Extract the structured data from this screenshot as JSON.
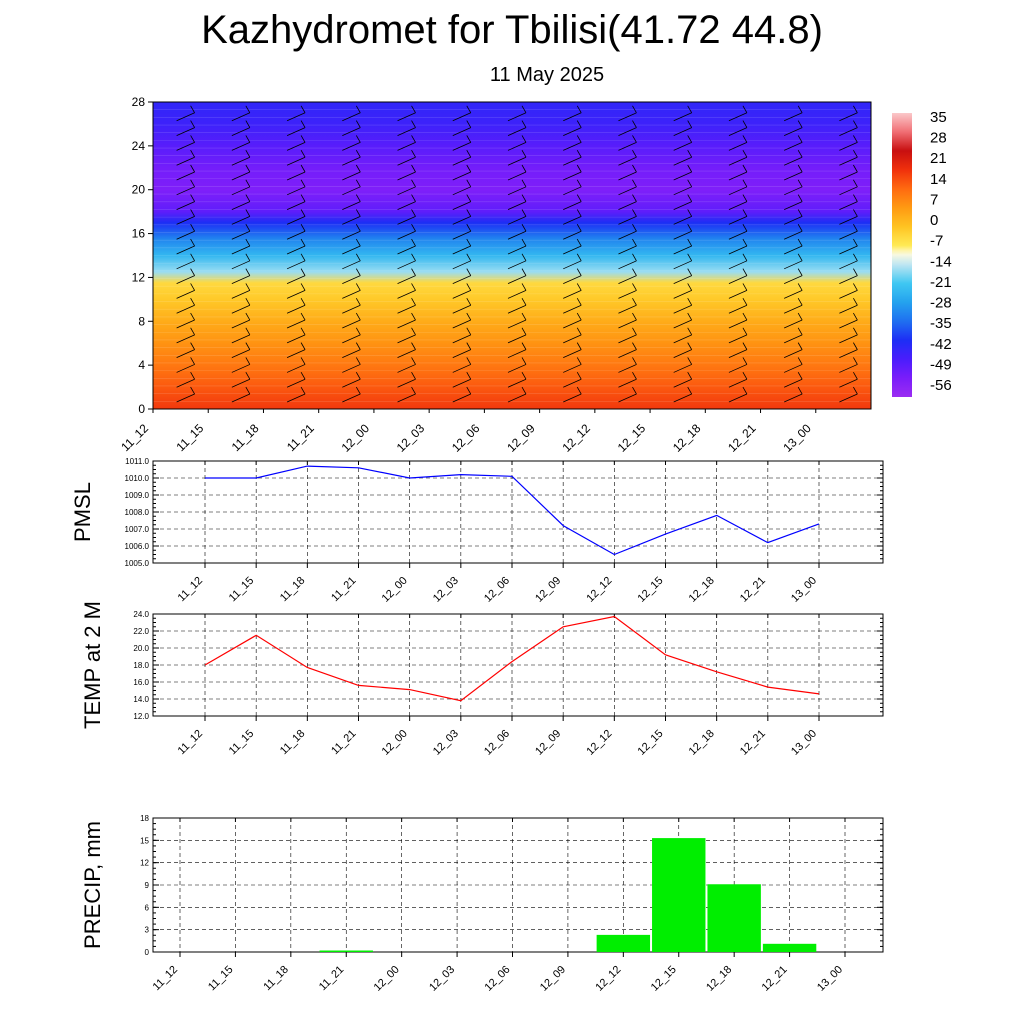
{
  "title": "Kazhydromet for Tbilisi(41.72 44.8)",
  "subtitle": "11 May 2025",
  "time_labels": [
    "11_12",
    "11_15",
    "11_18",
    "11_21",
    "12_00",
    "12_03",
    "12_06",
    "12_09",
    "12_12",
    "12_15",
    "12_18",
    "12_21",
    "13_00"
  ],
  "colors": {
    "pmsl_line": "#0000ff",
    "temp_line": "#ff0000",
    "precip_bar": "#00ee00",
    "wind_barb": "#000000",
    "grid": "#000000"
  },
  "chart_data": [
    {
      "type": "heatmap",
      "title": "",
      "xlabel": "",
      "ylabel": "",
      "x": [
        "11_12",
        "11_15",
        "11_18",
        "11_21",
        "12_00",
        "12_03",
        "12_06",
        "12_09",
        "12_12",
        "12_15",
        "12_18",
        "12_21",
        "13_00"
      ],
      "y_ticks": [
        0,
        4,
        8,
        12,
        16,
        20,
        24,
        28
      ],
      "ylim": [
        0,
        28
      ],
      "legend": {
        "placement": "right",
        "ticks": [
          35,
          28,
          21,
          14,
          7,
          0,
          -7,
          -14,
          -21,
          -28,
          -35,
          -42,
          -49,
          -56
        ],
        "range": [
          -63,
          42
        ]
      },
      "profile": [
        {
          "level": 0,
          "value": 20
        },
        {
          "level": 2,
          "value": 16
        },
        {
          "level": 4,
          "value": 12
        },
        {
          "level": 6,
          "value": 8
        },
        {
          "level": 8,
          "value": 4
        },
        {
          "level": 10,
          "value": -1
        },
        {
          "level": 11.5,
          "value": -4
        },
        {
          "level": 12.5,
          "value": -16
        },
        {
          "level": 14,
          "value": -24
        },
        {
          "level": 15.5,
          "value": -32
        },
        {
          "level": 17,
          "value": -42
        },
        {
          "level": 18,
          "value": -52
        },
        {
          "level": 20,
          "value": -57
        },
        {
          "level": 22,
          "value": -55
        },
        {
          "level": 24,
          "value": -51
        },
        {
          "level": 26,
          "value": -47
        },
        {
          "level": 28,
          "value": -45
        }
      ]
    },
    {
      "type": "line",
      "ylabel": "PMSL",
      "xlabel": "",
      "categories": [
        "11_12",
        "11_15",
        "11_18",
        "11_21",
        "12_00",
        "12_03",
        "12_06",
        "12_09",
        "12_12",
        "12_15",
        "12_18",
        "12_21",
        "13_00"
      ],
      "values": [
        1010.0,
        1010.0,
        1010.7,
        1010.6,
        1010.0,
        1010.2,
        1010.1,
        1007.2,
        1005.5,
        1006.7,
        1007.8,
        1006.2,
        1007.3
      ],
      "ylim": [
        1005.0,
        1011.0
      ],
      "y_ticks": [
        "1005.0",
        "1006.0",
        "1007.0",
        "1008.0",
        "1009.0",
        "1010.0",
        "1011.0"
      ],
      "grid": true
    },
    {
      "type": "line",
      "ylabel": "TEMP at 2 M",
      "xlabel": "",
      "categories": [
        "11_12",
        "11_15",
        "11_18",
        "11_21",
        "12_00",
        "12_03",
        "12_06",
        "12_09",
        "12_12",
        "12_15",
        "12_18",
        "12_21",
        "13_00"
      ],
      "values": [
        18.0,
        21.5,
        17.7,
        15.6,
        15.1,
        13.8,
        18.4,
        22.5,
        23.7,
        19.2,
        17.2,
        15.4,
        14.6
      ],
      "ylim": [
        12.0,
        24.0
      ],
      "y_ticks": [
        "12.0",
        "14.0",
        "16.0",
        "18.0",
        "20.0",
        "22.0",
        "24.0"
      ],
      "grid": true
    },
    {
      "type": "bar",
      "ylabel": "PRECIP, mm",
      "xlabel": "",
      "categories": [
        "11_12",
        "11_15",
        "11_18",
        "11_21",
        "12_00",
        "12_03",
        "12_06",
        "12_09",
        "12_12",
        "12_15",
        "12_18",
        "12_21",
        "13_00"
      ],
      "values": [
        0,
        0,
        0,
        0.2,
        0,
        0,
        0,
        0,
        2.3,
        15.3,
        9.1,
        1.1,
        0
      ],
      "ylim": [
        0,
        18
      ],
      "y_ticks": [
        "0",
        "3",
        "6",
        "9",
        "12",
        "15",
        "18"
      ],
      "grid": true
    }
  ]
}
